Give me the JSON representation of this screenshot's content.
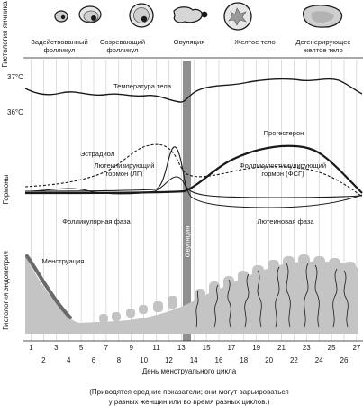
{
  "section_labels": {
    "ovary": "Гистология яичника",
    "hormones": "Гормоны",
    "endometrium": "Гистология эндометрия"
  },
  "stages": [
    {
      "line1": "Задействованный",
      "line2": "фолликул"
    },
    {
      "line1": "Созревающий",
      "line2": "фолликул"
    },
    {
      "line1": "Овуляция",
      "line2": ""
    },
    {
      "line1": "Желтое тело",
      "line2": ""
    },
    {
      "line1": "Дегенерирующее",
      "line2": "желтое тело"
    }
  ],
  "temperature": {
    "label": "Температура тела",
    "tick_high": "37°C",
    "tick_low": "36°C"
  },
  "hormones": {
    "estradiol": "Эстрадиол",
    "lh_line1": "Лютеинизирующий",
    "lh_line2": "гормон (ЛГ)",
    "progesterone": "Прогестерон",
    "fsh_line1": "Фолликулостимулирующий",
    "fsh_line2": "гормон (ФСГ)"
  },
  "phases": {
    "follicular": "Фолликулярная фаза",
    "ovulation": "Овуляция",
    "luteal": "Лютеиновая фаза"
  },
  "endometrium": {
    "menstruation": "Менструация"
  },
  "axis": {
    "days_odd": [
      "1",
      "3",
      "5",
      "7",
      "9",
      "11",
      "13",
      "15",
      "17",
      "19",
      "21",
      "23",
      "25",
      "27"
    ],
    "days_even": [
      "2",
      "4",
      "6",
      "8",
      "10",
      "12",
      "14",
      "16",
      "18",
      "20",
      "22",
      "24",
      "26",
      "28"
    ],
    "xlabel": "День менструального цикла"
  },
  "caption": {
    "line1": "(Приводятся средние показатели; они могут варьироваться",
    "line2": "у разных женщин или во время разных циклов.)"
  },
  "colors": {
    "ink": "#1a1a1a",
    "grid": "#bdbdbd",
    "ovulation_band": "#8f8f8f",
    "ovary_fill": "#cfcfcf",
    "endometrium_fill": "#c4c4c4",
    "menstruation_band": "#6a6a6a"
  }
}
